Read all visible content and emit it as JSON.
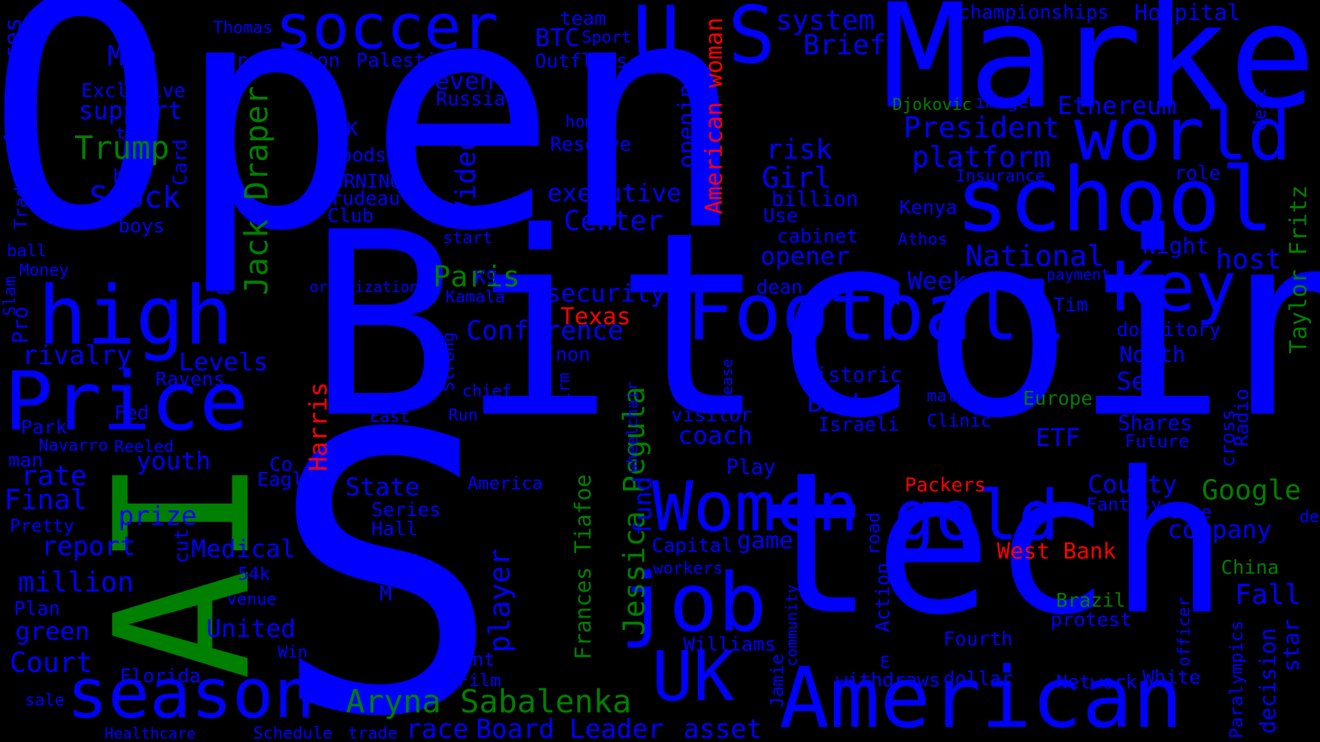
{
  "palette": {
    "background": "#000000",
    "blue": "#0000ff",
    "green": "#008000",
    "red": "#ff0000"
  },
  "words": [
    {
      "text": "Open",
      "color": "blue"
    },
    {
      "text": "Bitcoin",
      "color": "blue"
    },
    {
      "text": "S",
      "color": "blue"
    },
    {
      "text": "Market",
      "color": "blue"
    },
    {
      "text": "tech",
      "color": "blue"
    },
    {
      "text": "AI",
      "color": "green"
    },
    {
      "text": "school",
      "color": "blue"
    },
    {
      "text": "world",
      "color": "blue"
    },
    {
      "text": "U S",
      "color": "blue"
    },
    {
      "text": "Football",
      "color": "blue"
    },
    {
      "text": "American",
      "color": "blue"
    },
    {
      "text": "Price",
      "color": "blue"
    },
    {
      "text": "high",
      "color": "blue"
    },
    {
      "text": "season",
      "color": "blue"
    },
    {
      "text": "job",
      "color": "blue"
    },
    {
      "text": "Women",
      "color": "blue"
    },
    {
      "text": "gold",
      "color": "blue"
    },
    {
      "text": "UK",
      "color": "blue"
    },
    {
      "text": "Key",
      "color": "blue"
    },
    {
      "text": "soccer",
      "color": "blue"
    },
    {
      "text": "Aryna Sabalenka",
      "color": "green"
    },
    {
      "text": "Jessica Pegula",
      "color": "green"
    },
    {
      "text": "Jack Draper",
      "color": "green"
    },
    {
      "text": "Frances Tiafoe",
      "color": "green"
    },
    {
      "text": "Taylor Fritz",
      "color": "green"
    },
    {
      "text": "Trump",
      "color": "green"
    },
    {
      "text": "Paris",
      "color": "green"
    },
    {
      "text": "Google",
      "color": "green"
    },
    {
      "text": "Europe",
      "color": "green"
    },
    {
      "text": "Brazil",
      "color": "green"
    },
    {
      "text": "China",
      "color": "green"
    },
    {
      "text": "Djokovic",
      "color": "green"
    },
    {
      "text": "American woman",
      "color": "red"
    },
    {
      "text": "Harris",
      "color": "red"
    },
    {
      "text": "Texas",
      "color": "red"
    },
    {
      "text": "Packers",
      "color": "red"
    },
    {
      "text": "West Bank",
      "color": "red"
    },
    {
      "text": "Stock",
      "color": "blue"
    },
    {
      "text": "Men",
      "color": "blue"
    },
    {
      "text": "support",
      "color": "blue"
    },
    {
      "text": "Exclusive",
      "color": "blue"
    },
    {
      "text": "test",
      "color": "blue"
    },
    {
      "text": "bad",
      "color": "blue"
    },
    {
      "text": "boys",
      "color": "blue"
    },
    {
      "text": "Card",
      "color": "blue"
    },
    {
      "text": "Announces",
      "color": "blue"
    },
    {
      "text": "Trading",
      "color": "blue"
    },
    {
      "text": "ball",
      "color": "blue"
    },
    {
      "text": "Money",
      "color": "blue"
    },
    {
      "text": "Slam",
      "color": "blue"
    },
    {
      "text": "Pro",
      "color": "blue"
    },
    {
      "text": "rivalry",
      "color": "blue"
    },
    {
      "text": "Ravens",
      "color": "blue"
    },
    {
      "text": "Levels",
      "color": "blue"
    },
    {
      "text": "Fed",
      "color": "blue"
    },
    {
      "text": "Park",
      "color": "blue"
    },
    {
      "text": "Navarro",
      "color": "blue"
    },
    {
      "text": "Reeled",
      "color": "blue"
    },
    {
      "text": "man",
      "color": "blue"
    },
    {
      "text": "youth",
      "color": "blue"
    },
    {
      "text": "rate",
      "color": "blue"
    },
    {
      "text": "Final",
      "color": "blue"
    },
    {
      "text": "prize",
      "color": "blue"
    },
    {
      "text": "Pretty",
      "color": "blue"
    },
    {
      "text": "report",
      "color": "blue"
    },
    {
      "text": "cut",
      "color": "blue"
    },
    {
      "text": "Medical",
      "color": "blue"
    },
    {
      "text": "million",
      "color": "blue"
    },
    {
      "text": "54k",
      "color": "blue"
    },
    {
      "text": "Plan",
      "color": "blue"
    },
    {
      "text": "venue",
      "color": "blue"
    },
    {
      "text": "green",
      "color": "blue"
    },
    {
      "text": "United",
      "color": "blue"
    },
    {
      "text": "Court",
      "color": "blue"
    },
    {
      "text": "Win",
      "color": "blue"
    },
    {
      "text": "Florida",
      "color": "blue"
    },
    {
      "text": "sale",
      "color": "blue"
    },
    {
      "text": "Healthcare",
      "color": "blue"
    },
    {
      "text": "Schedule",
      "color": "blue"
    },
    {
      "text": "trade",
      "color": "blue"
    },
    {
      "text": "race",
      "color": "blue"
    },
    {
      "text": "Board",
      "color": "blue"
    },
    {
      "text": "Leader",
      "color": "blue"
    },
    {
      "text": "asset",
      "color": "blue"
    },
    {
      "text": "Thomas",
      "color": "blue"
    },
    {
      "text": "Prediction",
      "color": "blue"
    },
    {
      "text": "Palestinian",
      "color": "blue"
    },
    {
      "text": "team",
      "color": "blue"
    },
    {
      "text": "BTC",
      "color": "blue"
    },
    {
      "text": "Sport",
      "color": "blue"
    },
    {
      "text": "Outflows",
      "color": "blue"
    },
    {
      "text": "event",
      "color": "blue"
    },
    {
      "text": "Russia",
      "color": "blue"
    },
    {
      "text": "55K",
      "color": "blue"
    },
    {
      "text": "foods",
      "color": "blue"
    },
    {
      "text": "MORNING",
      "color": "blue"
    },
    {
      "text": "Trudeau",
      "color": "blue"
    },
    {
      "text": "Club",
      "color": "blue"
    },
    {
      "text": "Video",
      "color": "blue"
    },
    {
      "text": "home",
      "color": "blue"
    },
    {
      "text": "Reserve",
      "color": "blue"
    },
    {
      "text": "executive",
      "color": "blue"
    },
    {
      "text": "Center",
      "color": "blue"
    },
    {
      "text": "start",
      "color": "blue"
    },
    {
      "text": "Peter",
      "color": "blue"
    },
    {
      "text": "K9",
      "color": "blue"
    },
    {
      "text": "organization",
      "color": "blue"
    },
    {
      "text": "Kamala",
      "color": "blue"
    },
    {
      "text": "security",
      "color": "blue"
    },
    {
      "text": "Conference",
      "color": "blue"
    },
    {
      "text": "Real",
      "color": "blue"
    },
    {
      "text": "opening",
      "color": "blue"
    },
    {
      "text": "Strong",
      "color": "blue"
    },
    {
      "text": "non",
      "color": "blue"
    },
    {
      "text": "chief",
      "color": "blue"
    },
    {
      "text": "firm",
      "color": "blue"
    },
    {
      "text": "East",
      "color": "blue"
    },
    {
      "text": "Run",
      "color": "blue"
    },
    {
      "text": "wheelchair",
      "color": "blue"
    },
    {
      "text": "ease",
      "color": "blue"
    },
    {
      "text": "visitor",
      "color": "blue"
    },
    {
      "text": "coach",
      "color": "blue"
    },
    {
      "text": "Co",
      "color": "blue"
    },
    {
      "text": "Eagles",
      "color": "blue"
    },
    {
      "text": "State",
      "color": "blue"
    },
    {
      "text": "America",
      "color": "blue"
    },
    {
      "text": "Series",
      "color": "blue"
    },
    {
      "text": "Hall",
      "color": "blue"
    },
    {
      "text": "fund",
      "color": "blue"
    },
    {
      "text": "border",
      "color": "blue"
    },
    {
      "text": "player",
      "color": "blue"
    },
    {
      "text": "M",
      "color": "blue"
    },
    {
      "text": "giant",
      "color": "blue"
    },
    {
      "text": "Film",
      "color": "blue"
    },
    {
      "text": "Capital",
      "color": "blue"
    },
    {
      "text": "workers",
      "color": "blue"
    },
    {
      "text": "Play",
      "color": "blue"
    },
    {
      "text": "game",
      "color": "blue"
    },
    {
      "text": "road",
      "color": "blue"
    },
    {
      "text": "Williams",
      "color": "blue"
    },
    {
      "text": "community",
      "color": "blue"
    },
    {
      "text": "Jamie",
      "color": "blue"
    },
    {
      "text": "Action",
      "color": "blue"
    },
    {
      "text": "E",
      "color": "blue"
    },
    {
      "text": "withdraws",
      "color": "blue"
    },
    {
      "text": "system",
      "color": "blue"
    },
    {
      "text": "Brief",
      "color": "blue"
    },
    {
      "text": "championships",
      "color": "blue"
    },
    {
      "text": "Hospital",
      "color": "blue"
    },
    {
      "text": "image",
      "color": "blue"
    },
    {
      "text": "Ethereum",
      "color": "blue"
    },
    {
      "text": "deal",
      "color": "blue"
    },
    {
      "text": "President",
      "color": "blue"
    },
    {
      "text": "platform",
      "color": "blue"
    },
    {
      "text": "Insurance",
      "color": "blue"
    },
    {
      "text": "role",
      "color": "blue"
    },
    {
      "text": "risk",
      "color": "blue"
    },
    {
      "text": "Girl",
      "color": "blue"
    },
    {
      "text": "billion",
      "color": "blue"
    },
    {
      "text": "Use",
      "color": "blue"
    },
    {
      "text": "cabinet",
      "color": "blue"
    },
    {
      "text": "opener",
      "color": "blue"
    },
    {
      "text": "Kenya",
      "color": "blue"
    },
    {
      "text": "Athos",
      "color": "blue"
    },
    {
      "text": "National",
      "color": "blue"
    },
    {
      "text": "Night",
      "color": "blue"
    },
    {
      "text": "host",
      "color": "blue"
    },
    {
      "text": "payment",
      "color": "blue"
    },
    {
      "text": "dean",
      "color": "blue"
    },
    {
      "text": "Week",
      "color": "blue"
    },
    {
      "text": "Tim",
      "color": "blue"
    },
    {
      "text": "dormitory",
      "color": "blue"
    },
    {
      "text": "North",
      "color": "blue"
    },
    {
      "text": "Historic",
      "color": "blue"
    },
    {
      "text": "Set",
      "color": "blue"
    },
    {
      "text": "match",
      "color": "blue"
    },
    {
      "text": "Bank",
      "color": "blue"
    },
    {
      "text": "Israeli",
      "color": "blue"
    },
    {
      "text": "Clinic",
      "color": "blue"
    },
    {
      "text": "wave",
      "color": "blue"
    },
    {
      "text": "Shares",
      "color": "blue"
    },
    {
      "text": "Radio",
      "color": "blue"
    },
    {
      "text": "cross",
      "color": "blue"
    },
    {
      "text": "Future",
      "color": "blue"
    },
    {
      "text": "ETF",
      "color": "blue"
    },
    {
      "text": "County",
      "color": "blue"
    },
    {
      "text": "Fantasy",
      "color": "blue"
    },
    {
      "text": "Case",
      "color": "blue"
    },
    {
      "text": "company",
      "color": "blue"
    },
    {
      "text": "de",
      "color": "blue"
    },
    {
      "text": "Fall",
      "color": "blue"
    },
    {
      "text": "protest",
      "color": "blue"
    },
    {
      "text": "Fourth",
      "color": "blue"
    },
    {
      "text": "officer",
      "color": "blue"
    },
    {
      "text": "Paralympics",
      "color": "blue"
    },
    {
      "text": "decision",
      "color": "blue"
    },
    {
      "text": "star",
      "color": "blue"
    },
    {
      "text": "dollar",
      "color": "blue"
    },
    {
      "text": "Network",
      "color": "blue"
    },
    {
      "text": "White",
      "color": "blue"
    }
  ]
}
